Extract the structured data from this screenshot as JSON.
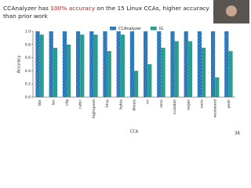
{
  "slide": {
    "title_parts": [
      "CCAnalyzer has ",
      "100% accuracy",
      " on the 15 Linux CCAs, higher accuracy"
    ],
    "title_line2": "than prior work",
    "page_number": "36"
  },
  "chart_data": {
    "type": "bar",
    "categories": [
      "bbr",
      "bic",
      "cdg",
      "cubic",
      "highspeed",
      "htcp",
      "hybla",
      "illinois",
      "nv",
      "reno",
      "scalable",
      "vegas",
      "veno",
      "westwood",
      "yeah"
    ],
    "series": [
      {
        "name": "CCAnalyzer",
        "color": "#1f6fb4",
        "hatch": true,
        "values": [
          1,
          1,
          1,
          1,
          1,
          1,
          1,
          1,
          1,
          1,
          1,
          1,
          1,
          1,
          1
        ]
      },
      {
        "name": "IG",
        "color": "#2a9d8f",
        "values": [
          0.95,
          0.75,
          0.8,
          0.95,
          0.95,
          0.7,
          0.95,
          0.4,
          0.5,
          0.75,
          0.85,
          0.85,
          0.75,
          0.3,
          0.7
        ]
      }
    ],
    "x_label": "CCA",
    "y_label": "Accuracy",
    "ylim": [
      0,
      1
    ],
    "yticks": [
      {
        "value": 0,
        "label": "0.0"
      },
      0.2,
      0.4,
      0.6,
      0.8,
      {
        "value": 1,
        "label": "1.0"
      }
    ],
    "legend": "top"
  }
}
